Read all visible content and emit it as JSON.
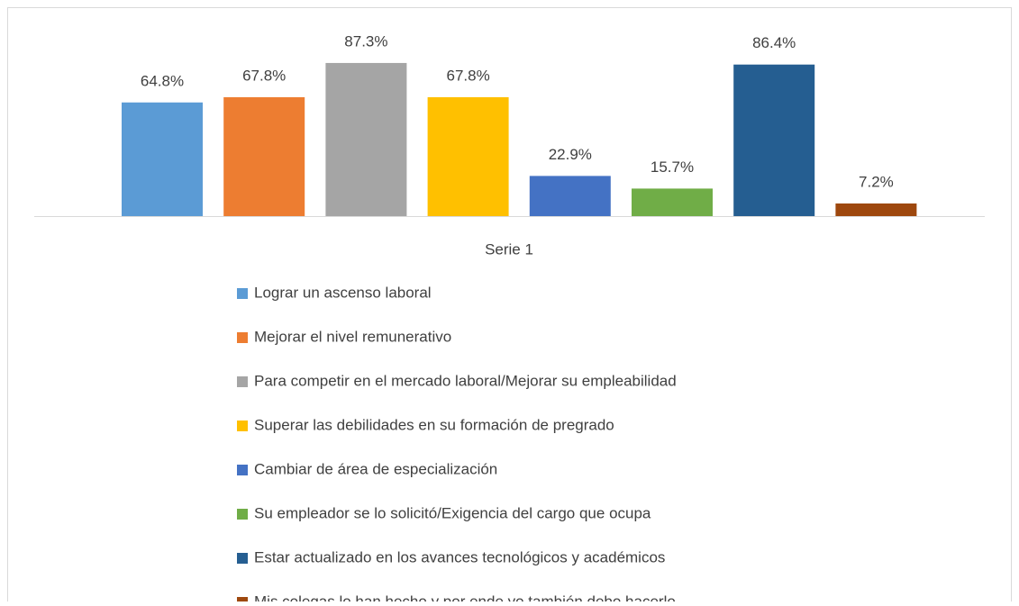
{
  "chart_data": {
    "type": "bar",
    "categories": [
      "Serie 1"
    ],
    "series": [
      {
        "name": "Lograr un ascenso laboral",
        "color": "#5b9bd5",
        "values": [
          64.8
        ],
        "value_labels": [
          "64.8%"
        ]
      },
      {
        "name": "Mejorar el nivel remunerativo",
        "color": "#ed7d31",
        "values": [
          67.8
        ],
        "value_labels": [
          "67.8%"
        ]
      },
      {
        "name": "Para competir en el mercado laboral/Mejorar su empleabilidad",
        "color": "#a5a5a5",
        "values": [
          87.3
        ],
        "value_labels": [
          "87.3%"
        ]
      },
      {
        "name": "Superar las debilidades en su formación de pregrado",
        "color": "#ffc000",
        "values": [
          67.8
        ],
        "value_labels": [
          "67.8%"
        ]
      },
      {
        "name": "Cambiar de área de especialización",
        "color": "#4472c4",
        "values": [
          22.9
        ],
        "value_labels": [
          "22.9%"
        ]
      },
      {
        "name": "Su empleador se lo solicitó/Exigencia del cargo que ocupa",
        "color": "#70ad47",
        "values": [
          15.7
        ],
        "value_labels": [
          "15.7%"
        ]
      },
      {
        "name": "Estar actualizado en los avances tecnológicos y académicos",
        "color": "#255e91",
        "values": [
          86.4
        ],
        "value_labels": [
          "86.4%"
        ]
      },
      {
        "name": "Mis colegas lo han hecho y por ende yo también debo hacerlo",
        "color": "#9e480e",
        "values": [
          7.2
        ],
        "value_labels": [
          "7.2%"
        ]
      }
    ]
  }
}
